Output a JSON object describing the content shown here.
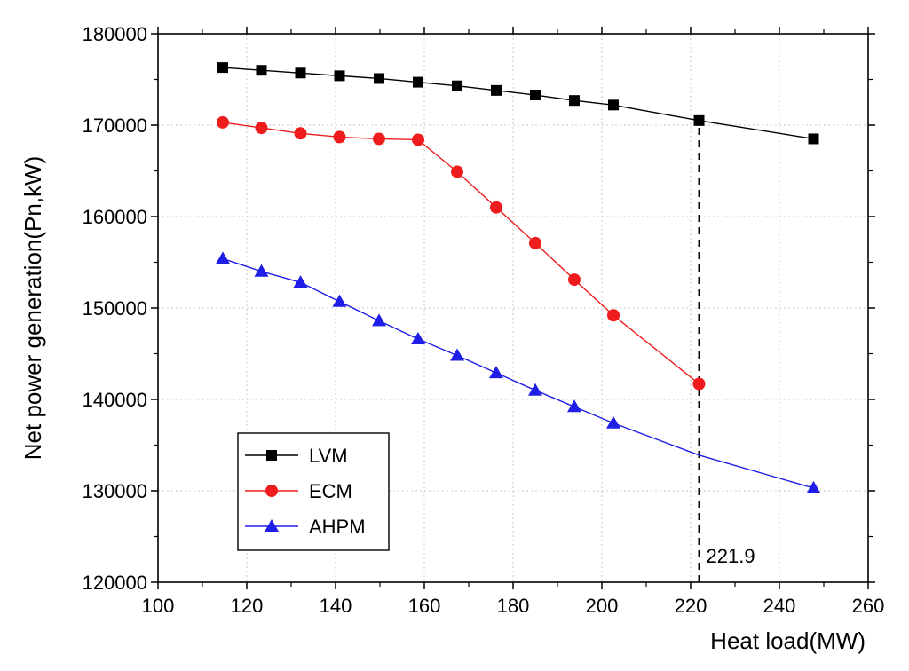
{
  "chart_data": {
    "type": "line",
    "title": "",
    "xlabel": "Heat load(MW)",
    "ylabel": "Net power generation(Pn,kW)",
    "xlim": [
      100,
      260
    ],
    "ylim": [
      120000,
      180000
    ],
    "xticks": [
      100,
      120,
      140,
      160,
      180,
      200,
      220,
      240,
      260
    ],
    "yticks": [
      120000,
      130000,
      140000,
      150000,
      160000,
      170000,
      180000
    ],
    "grid": true,
    "legend_position": "bottom-left",
    "series": [
      {
        "name": "LVM",
        "color": "#000000",
        "marker": "square",
        "x": [
          114.6,
          123.3,
          132.1,
          140.9,
          149.8,
          158.6,
          167.4,
          176.2,
          185.0,
          193.8,
          202.6,
          221.9,
          247.7
        ],
        "y": [
          176300,
          176000,
          175700,
          175400,
          175100,
          174700,
          174300,
          173800,
          173300,
          172700,
          172200,
          170500,
          168500
        ],
        "marker_count": 13
      },
      {
        "name": "ECM",
        "color": "#ee1c1c",
        "marker": "circle",
        "x": [
          114.6,
          123.3,
          132.1,
          140.9,
          149.8,
          158.6,
          167.4,
          176.2,
          185.0,
          193.8,
          202.6,
          221.9
        ],
        "y": [
          170300,
          169700,
          169100,
          168700,
          168500,
          168400,
          164900,
          161000,
          157100,
          153100,
          149200,
          141700
        ],
        "marker_count": 12
      },
      {
        "name": "AHPM",
        "color": "#1e1ee6",
        "marker": "triangle",
        "x": [
          114.6,
          123.3,
          132.1,
          140.9,
          149.8,
          158.6,
          167.4,
          176.2,
          185.0,
          193.8,
          202.6,
          221.9,
          247.7
        ],
        "y": [
          155400,
          154000,
          152800,
          150700,
          148600,
          146600,
          144800,
          142900,
          141000,
          139200,
          137400,
          133900,
          130300
        ],
        "marker_count": 12,
        "unmarked_index": 11
      }
    ],
    "annotations": [
      {
        "type": "vline",
        "x": 221.9,
        "y_from": 120000,
        "y_to": 170500,
        "style": "dashed",
        "label": "221.9"
      }
    ]
  }
}
